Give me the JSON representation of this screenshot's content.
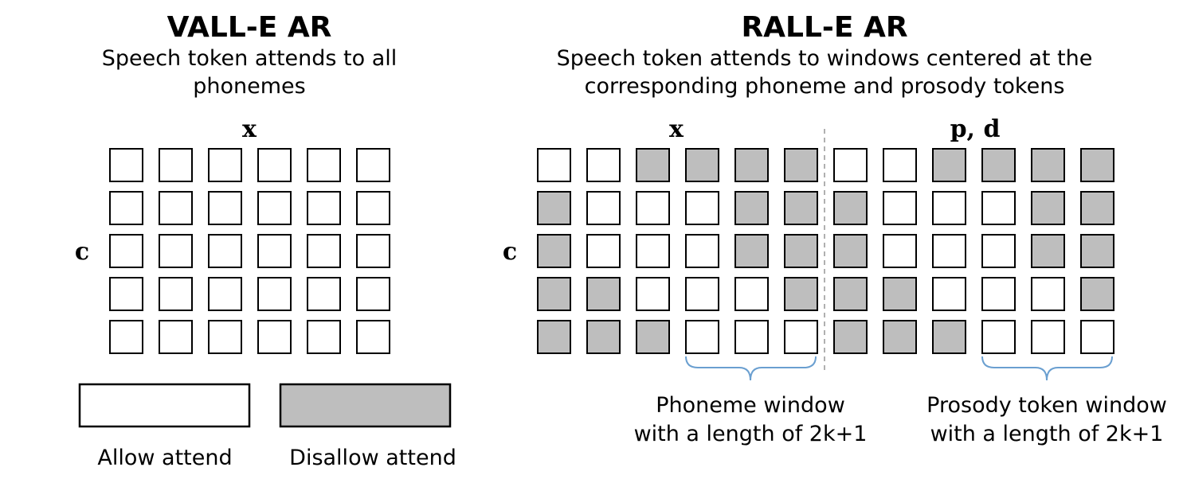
{
  "vall_e": {
    "title": "VALL-E AR",
    "subtitle_line1": "Speech token attends to all",
    "subtitle_line2": "phonemes",
    "x_label": "x",
    "c_label": "c",
    "grid": [
      [
        0,
        0,
        0,
        0,
        0,
        0
      ],
      [
        0,
        0,
        0,
        0,
        0,
        0
      ],
      [
        0,
        0,
        0,
        0,
        0,
        0
      ],
      [
        0,
        0,
        0,
        0,
        0,
        0
      ],
      [
        0,
        0,
        0,
        0,
        0,
        0
      ]
    ]
  },
  "rall_e": {
    "title": "RALL-E AR",
    "subtitle_line1": "Speech token attends to windows centered at the",
    "subtitle_line2": "corresponding phoneme and prosody tokens",
    "x_label": "x",
    "pd_label": "p, d",
    "c_label": "c",
    "phoneme_grid": [
      [
        0,
        0,
        1,
        1,
        1,
        1
      ],
      [
        1,
        0,
        0,
        0,
        1,
        1
      ],
      [
        1,
        0,
        0,
        0,
        1,
        1
      ],
      [
        1,
        1,
        0,
        0,
        0,
        1
      ],
      [
        1,
        1,
        1,
        0,
        0,
        0
      ]
    ],
    "prosody_grid": [
      [
        0,
        0,
        1,
        1,
        1,
        1
      ],
      [
        1,
        0,
        0,
        0,
        1,
        1
      ],
      [
        1,
        0,
        0,
        0,
        1,
        1
      ],
      [
        1,
        1,
        0,
        0,
        0,
        1
      ],
      [
        1,
        1,
        1,
        0,
        0,
        0
      ]
    ],
    "phoneme_window_line1": "Phoneme window",
    "phoneme_window_line2": "with a length of 2k+1",
    "prosody_window_line1": "Prosody token window",
    "prosody_window_line2": "with a length of 2k+1"
  },
  "legend": {
    "allow": "Allow attend",
    "disallow": "Disallow attend"
  },
  "colors": {
    "allowed": "#ffffff",
    "disallowed": "#bebebe",
    "border": "#000000",
    "brace": "#6a9fd0",
    "divider": "#b0b0b0"
  }
}
